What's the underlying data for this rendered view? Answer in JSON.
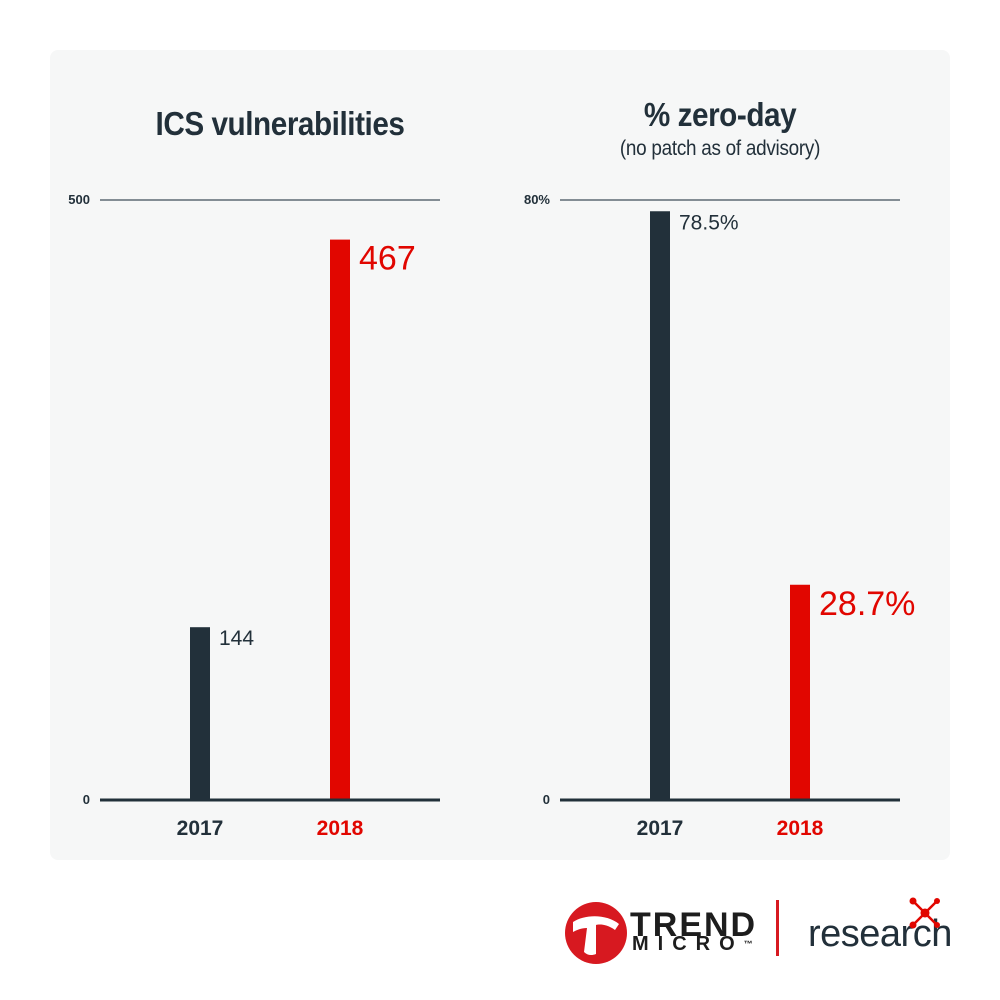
{
  "colors": {
    "dark": "#22303a",
    "red": "#e10600",
    "axis": "#22303a",
    "gridline": "#5d6a74"
  },
  "chart_data": [
    {
      "type": "bar",
      "title": "ICS vulnerabilities",
      "subtitle": "",
      "categories": [
        "2017",
        "2018"
      ],
      "values": [
        144,
        467
      ],
      "value_labels": [
        "144",
        "467"
      ],
      "ylim": [
        0,
        500
      ],
      "yticks": [
        "0",
        "500"
      ],
      "bar_colors": [
        "#22303a",
        "#e10600"
      ],
      "grid": "top line only"
    },
    {
      "type": "bar",
      "title": "% zero-day",
      "subtitle": "(no patch as of advisory)",
      "categories": [
        "2017",
        "2018"
      ],
      "values": [
        78.5,
        28.7
      ],
      "value_labels": [
        "78.5%",
        "28.7%"
      ],
      "ylim": [
        0,
        80
      ],
      "yticks": [
        "0",
        "80%"
      ],
      "bar_colors": [
        "#22303a",
        "#e10600"
      ],
      "grid": "top line only"
    }
  ],
  "brand": {
    "company_line1": "TREND",
    "company_line2": "MICRO",
    "tm": "™",
    "division": "research",
    "logo_icon": "trend-micro-ball-icon",
    "research_icon": "molecule-icon"
  }
}
